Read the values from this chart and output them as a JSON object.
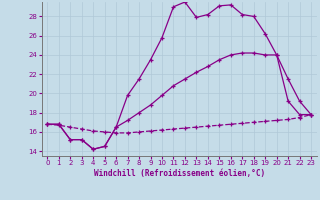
{
  "xlabel": "Windchill (Refroidissement éolien,°C)",
  "xlim": [
    -0.5,
    23.5
  ],
  "ylim": [
    13.5,
    29.5
  ],
  "xticks": [
    0,
    1,
    2,
    3,
    4,
    5,
    6,
    7,
    8,
    9,
    10,
    11,
    12,
    13,
    14,
    15,
    16,
    17,
    18,
    19,
    20,
    21,
    22,
    23
  ],
  "yticks": [
    14,
    16,
    18,
    20,
    22,
    24,
    26,
    28
  ],
  "background_color": "#c5dce8",
  "grid_color": "#b0c8d8",
  "line_color": "#880088",
  "line1_x": [
    0,
    1,
    2,
    3,
    4,
    5,
    6,
    7,
    8,
    9,
    10,
    11,
    12,
    13,
    14,
    15,
    16,
    17,
    18,
    19,
    20,
    21,
    22,
    23
  ],
  "line1_y": [
    16.8,
    16.8,
    15.2,
    15.2,
    14.2,
    14.5,
    16.5,
    19.8,
    21.5,
    23.5,
    25.8,
    29.0,
    29.5,
    27.9,
    28.2,
    29.1,
    29.2,
    28.2,
    28.0,
    26.2,
    24.0,
    19.2,
    17.8,
    17.8
  ],
  "line2_x": [
    0,
    1,
    2,
    3,
    4,
    5,
    6,
    7,
    8,
    9,
    10,
    11,
    12,
    13,
    14,
    15,
    16,
    17,
    18,
    19,
    20,
    21,
    22,
    23
  ],
  "line2_y": [
    16.8,
    16.8,
    15.2,
    15.2,
    14.2,
    14.5,
    16.5,
    17.2,
    18.0,
    18.8,
    19.8,
    20.8,
    21.5,
    22.2,
    22.8,
    23.5,
    24.0,
    24.2,
    24.2,
    24.0,
    24.0,
    21.5,
    19.2,
    17.8
  ],
  "line3_x": [
    0,
    1,
    2,
    3,
    4,
    5,
    6,
    7,
    8,
    9,
    10,
    11,
    12,
    13,
    14,
    15,
    16,
    17,
    18,
    19,
    20,
    21,
    22,
    23
  ],
  "line3_y": [
    16.8,
    16.7,
    16.5,
    16.3,
    16.1,
    16.0,
    15.9,
    15.9,
    16.0,
    16.1,
    16.2,
    16.3,
    16.4,
    16.5,
    16.6,
    16.7,
    16.8,
    16.9,
    17.0,
    17.1,
    17.2,
    17.3,
    17.5,
    17.8
  ]
}
